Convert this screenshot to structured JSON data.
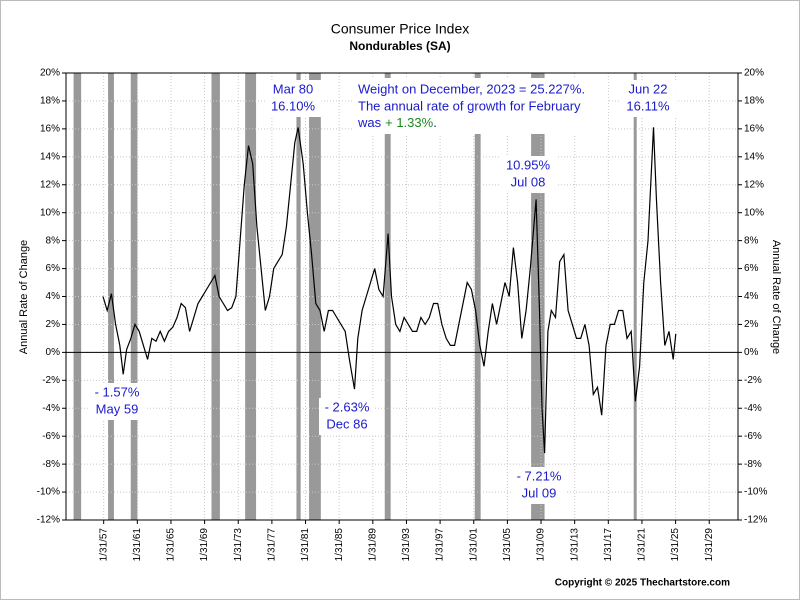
{
  "chart_data": {
    "type": "line",
    "title": "Consumer Price Index",
    "subtitle": "Nondurables (SA)",
    "y_label": "Annual Rate of Change",
    "y2_label": "Annual Rate of Change",
    "copyright": "Copyright © 2025 Thechartstore.com",
    "color": "#000000",
    "shade_color": "#999999",
    "grid": true,
    "xlim": [
      1952.6,
      2032.5
    ],
    "ylim": [
      -12,
      20
    ],
    "xticks": [
      {
        "value": 1957.08,
        "label": "1/31/57"
      },
      {
        "value": 1961.08,
        "label": "1/31/61"
      },
      {
        "value": 1965.08,
        "label": "1/31/65"
      },
      {
        "value": 1969.08,
        "label": "1/31/69"
      },
      {
        "value": 1973.08,
        "label": "1/31/73"
      },
      {
        "value": 1977.08,
        "label": "1/31/77"
      },
      {
        "value": 1981.08,
        "label": "1/31/81"
      },
      {
        "value": 1985.08,
        "label": "1/31/85"
      },
      {
        "value": 1989.08,
        "label": "1/31/89"
      },
      {
        "value": 1993.08,
        "label": "1/31/93"
      },
      {
        "value": 1997.08,
        "label": "1/31/97"
      },
      {
        "value": 2001.08,
        "label": "1/31/01"
      },
      {
        "value": 2005.08,
        "label": "1/31/05"
      },
      {
        "value": 2009.08,
        "label": "1/31/09"
      },
      {
        "value": 2013.08,
        "label": "1/31/13"
      },
      {
        "value": 2017.08,
        "label": "1/31/17"
      },
      {
        "value": 2021.08,
        "label": "1/31/21"
      },
      {
        "value": 2025.08,
        "label": "1/31/25"
      },
      {
        "value": 2029.08,
        "label": "1/31/29"
      }
    ],
    "yticks": [
      {
        "value": 20,
        "label": "20%"
      },
      {
        "value": 18,
        "label": "18%"
      },
      {
        "value": 16,
        "label": "16%"
      },
      {
        "value": 14,
        "label": "14%"
      },
      {
        "value": 12,
        "label": "12%"
      },
      {
        "value": 10,
        "label": "10%"
      },
      {
        "value": 8,
        "label": "8%"
      },
      {
        "value": 6,
        "label": "6%"
      },
      {
        "value": 4,
        "label": "4%"
      },
      {
        "value": 2,
        "label": "2%"
      },
      {
        "value": 0,
        "label": "0%"
      },
      {
        "value": -2,
        "label": "-2%"
      },
      {
        "value": -4,
        "label": "-4%"
      },
      {
        "value": -6,
        "label": "-6%"
      },
      {
        "value": -8,
        "label": "-8%"
      },
      {
        "value": -10,
        "label": "-10%"
      },
      {
        "value": -12,
        "label": "-12%"
      }
    ],
    "shading": [
      [
        1953.5,
        1954.4
      ],
      [
        1957.6,
        1958.3
      ],
      [
        1960.3,
        1961.1
      ],
      [
        1969.9,
        1970.9
      ],
      [
        1973.9,
        1975.2
      ],
      [
        1980.0,
        1980.5
      ],
      [
        1981.5,
        1982.9
      ],
      [
        1990.5,
        1991.2
      ],
      [
        2001.2,
        2001.9
      ],
      [
        2007.9,
        2009.5
      ],
      [
        2020.1,
        2020.3
      ]
    ],
    "x": [
      1957.0,
      1957.5,
      1958.0,
      1958.5,
      1959.0,
      1959.4,
      1959.8,
      1960.3,
      1960.8,
      1961.3,
      1961.8,
      1962.3,
      1962.8,
      1963.3,
      1963.8,
      1964.3,
      1964.8,
      1965.3,
      1965.8,
      1966.3,
      1966.8,
      1967.3,
      1967.8,
      1968.3,
      1968.8,
      1969.3,
      1969.8,
      1970.3,
      1970.8,
      1971.3,
      1971.8,
      1972.3,
      1972.8,
      1973.3,
      1973.8,
      1974.3,
      1974.8,
      1975.3,
      1975.8,
      1976.3,
      1976.8,
      1977.3,
      1977.8,
      1978.3,
      1978.8,
      1979.3,
      1979.8,
      1980.2,
      1980.8,
      1981.3,
      1981.8,
      1982.3,
      1982.8,
      1983.3,
      1983.8,
      1984.3,
      1984.8,
      1985.3,
      1985.8,
      1986.3,
      1986.9,
      1987.3,
      1987.8,
      1988.3,
      1988.8,
      1989.3,
      1989.8,
      1990.3,
      1990.9,
      1991.3,
      1991.8,
      1992.3,
      1992.8,
      1993.3,
      1993.8,
      1994.3,
      1994.8,
      1995.3,
      1995.8,
      1996.3,
      1996.8,
      1997.3,
      1997.8,
      1998.3,
      1998.8,
      1999.3,
      1999.8,
      2000.3,
      2000.8,
      2001.3,
      2001.8,
      2002.3,
      2002.8,
      2003.3,
      2003.8,
      2004.3,
      2004.8,
      2005.3,
      2005.8,
      2006.3,
      2006.8,
      2007.3,
      2007.8,
      2008.5,
      2008.9,
      2009.2,
      2009.5,
      2009.9,
      2010.3,
      2010.8,
      2011.3,
      2011.8,
      2012.3,
      2012.8,
      2013.3,
      2013.8,
      2014.3,
      2014.8,
      2015.3,
      2015.8,
      2016.3,
      2016.8,
      2017.3,
      2017.8,
      2018.3,
      2018.8,
      2019.3,
      2019.8,
      2020.3,
      2020.8,
      2021.3,
      2021.8,
      2022.45,
      2022.8,
      2023.3,
      2023.8,
      2024.3,
      2024.8,
      2025.1
    ],
    "values": [
      4.0,
      3.0,
      4.2,
      2.0,
      0.5,
      -1.57,
      0.2,
      1.0,
      2.0,
      1.5,
      0.5,
      -0.5,
      1.0,
      0.8,
      1.5,
      0.8,
      1.5,
      1.8,
      2.5,
      3.5,
      3.2,
      1.5,
      2.5,
      3.5,
      4.0,
      4.5,
      5.0,
      5.5,
      4.0,
      3.5,
      3.0,
      3.2,
      4.0,
      8.0,
      12.0,
      14.8,
      13.5,
      9.0,
      6.0,
      3.0,
      4.0,
      6.0,
      6.5,
      7.0,
      9.0,
      12.0,
      15.0,
      16.1,
      13.5,
      10.0,
      7.0,
      3.5,
      3.0,
      1.5,
      3.0,
      3.0,
      2.5,
      2.0,
      1.5,
      -0.5,
      -2.63,
      1.0,
      3.0,
      4.0,
      5.0,
      6.0,
      4.5,
      4.0,
      8.5,
      4.0,
      2.0,
      1.5,
      2.5,
      2.0,
      1.5,
      1.5,
      2.5,
      2.0,
      2.5,
      3.5,
      3.5,
      2.0,
      1.0,
      0.5,
      0.5,
      2.0,
      3.5,
      5.0,
      4.5,
      3.0,
      0.5,
      -1.0,
      1.5,
      3.5,
      2.0,
      3.5,
      5.0,
      4.0,
      7.5,
      5.0,
      1.0,
      3.0,
      6.0,
      10.95,
      3.0,
      -4.0,
      -7.21,
      1.5,
      3.0,
      2.5,
      6.5,
      7.0,
      3.0,
      2.0,
      1.0,
      1.0,
      2.0,
      0.5,
      -3.0,
      -2.5,
      -4.5,
      0.5,
      2.0,
      2.0,
      3.0,
      3.0,
      1.0,
      1.5,
      -3.5,
      -1.0,
      5.0,
      8.0,
      16.11,
      11.0,
      5.0,
      0.5,
      1.5,
      -0.5,
      1.33
    ],
    "annotations": [
      [
        "- 1.57%",
        "May 59"
      ],
      [
        "Mar 80",
        "16.10%"
      ],
      [
        "- 2.63%",
        "Dec 86"
      ],
      [
        "10.95%",
        "Jul 08"
      ],
      [
        "- 7.21%",
        "Jul 09"
      ],
      [
        "Jun 22",
        "16.11%"
      ]
    ],
    "note": {
      "line1": "Weight on December, 2023 = 25.227%.",
      "line2": "The annual rate of growth for February",
      "line3_prefix": "was",
      "line3_value": "+ 1.33%",
      "line3_suffix": "."
    }
  }
}
